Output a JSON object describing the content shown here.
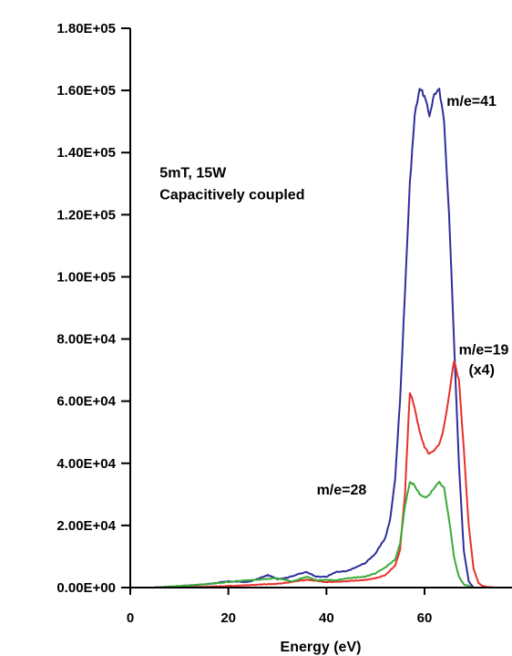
{
  "chart_data": {
    "type": "line",
    "title": "",
    "xlabel": "Energy (eV)",
    "ylabel": "",
    "xlim": [
      0,
      80
    ],
    "ylim": [
      0,
      180000
    ],
    "grid": false,
    "x_ticks": [
      {
        "value": 0,
        "label": "0"
      },
      {
        "value": 20,
        "label": "20"
      },
      {
        "value": 40,
        "label": "40"
      },
      {
        "value": 60,
        "label": "60"
      }
    ],
    "y_ticks": [
      {
        "value": 0,
        "label": "0.00E+00"
      },
      {
        "value": 20000,
        "label": "2.00E+04"
      },
      {
        "value": 40000,
        "label": "4.00E+04"
      },
      {
        "value": 60000,
        "label": "6.00E+04"
      },
      {
        "value": 80000,
        "label": "8.00E+04"
      },
      {
        "value": 100000,
        "label": "1.00E+05"
      },
      {
        "value": 120000,
        "label": "1.20E+05"
      },
      {
        "value": 140000,
        "label": "1.40E+05"
      },
      {
        "value": 160000,
        "label": "1.60E+05"
      },
      {
        "value": 180000,
        "label": "1.80E+05"
      }
    ],
    "annotations": [
      {
        "key": "conditions_1",
        "text": "5mT, 15W",
        "x": 6,
        "y": 132000
      },
      {
        "key": "conditions_2",
        "text": "Capacitively coupled",
        "x": 6,
        "y": 125000
      },
      {
        "key": "m41",
        "text": "m/e=41",
        "x": 64.5,
        "y": 155000
      },
      {
        "key": "m19",
        "text": "m/e=19",
        "x": 67,
        "y": 75000
      },
      {
        "key": "m19_scale",
        "text": "(x4)",
        "x": 69,
        "y": 68500
      },
      {
        "key": "m28",
        "text": "m/e=28",
        "x": 38,
        "y": 30000
      }
    ],
    "series": [
      {
        "key": "m41",
        "color": "#2e2e9a",
        "x": [
          5,
          10,
          15,
          20,
          24,
          26,
          28,
          30,
          32,
          34,
          36,
          38,
          40,
          42,
          44,
          46,
          48,
          50,
          52,
          53,
          54,
          55,
          56,
          57,
          58,
          59,
          60,
          61,
          62,
          63,
          64,
          65,
          66,
          67,
          68,
          69,
          70
        ],
        "y": [
          0,
          500,
          1000,
          2000,
          1800,
          2800,
          4000,
          2800,
          3200,
          4200,
          5000,
          3500,
          3500,
          5000,
          5200,
          6500,
          8000,
          11000,
          16000,
          22000,
          35000,
          60000,
          95000,
          130000,
          152000,
          161000,
          158000,
          152000,
          159000,
          160000,
          150000,
          120000,
          80000,
          40000,
          12000,
          2000,
          0
        ]
      },
      {
        "key": "m19",
        "color": "#e8302a",
        "x": [
          5,
          10,
          20,
          30,
          36,
          40,
          44,
          48,
          50,
          52,
          54,
          55,
          56,
          57,
          58,
          59,
          60,
          61,
          62,
          63,
          64,
          65,
          66,
          67,
          68,
          69,
          70,
          71,
          72,
          74,
          80
        ],
        "y": [
          0,
          0,
          500,
          1200,
          2500,
          1800,
          2000,
          2500,
          3000,
          4000,
          7000,
          12000,
          30000,
          63000,
          58000,
          50000,
          45000,
          43000,
          44000,
          46000,
          52000,
          62000,
          73000,
          67000,
          45000,
          20000,
          6000,
          1500,
          400,
          0,
          0
        ]
      },
      {
        "key": "m28",
        "color": "#3aaa3a",
        "x": [
          5,
          10,
          15,
          20,
          25,
          30,
          33,
          36,
          38,
          40,
          42,
          44,
          46,
          48,
          50,
          52,
          54,
          55,
          56,
          57,
          58,
          59,
          60,
          61,
          62,
          63,
          64,
          65,
          66,
          67,
          68,
          70
        ],
        "y": [
          0,
          500,
          1000,
          1800,
          2500,
          3000,
          2000,
          3500,
          2300,
          2500,
          2300,
          3000,
          3200,
          3600,
          4500,
          6500,
          9000,
          14000,
          26000,
          34000,
          33000,
          30000,
          29000,
          30000,
          32000,
          34000,
          32000,
          22000,
          10000,
          3500,
          1000,
          0
        ]
      }
    ]
  }
}
